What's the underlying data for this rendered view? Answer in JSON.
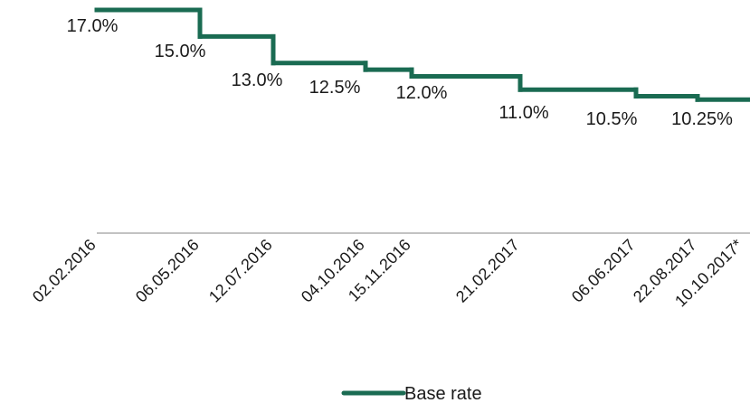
{
  "chart_data": {
    "type": "line",
    "step": true,
    "title": "",
    "xlabel": "",
    "ylabel": "",
    "x": [
      "02.02.2016",
      "06.05.2016",
      "12.07.2016",
      "04.10.2016",
      "15.11.2016",
      "21.02.2017",
      "06.06.2017",
      "22.08.2017",
      "10.10.2017*"
    ],
    "series": [
      {
        "name": "Base rate",
        "color": "#1a6b52",
        "values": [
          17.0,
          15.0,
          13.0,
          12.5,
          12.0,
          11.0,
          10.5,
          10.25,
          10.25
        ],
        "data_labels": [
          "17.0%",
          "15.0%",
          "13.0%",
          "12.5%",
          "12.0%",
          "11.0%",
          "10.5%",
          "10.25%"
        ]
      }
    ],
    "grid": false,
    "legend": "bottom-center"
  }
}
